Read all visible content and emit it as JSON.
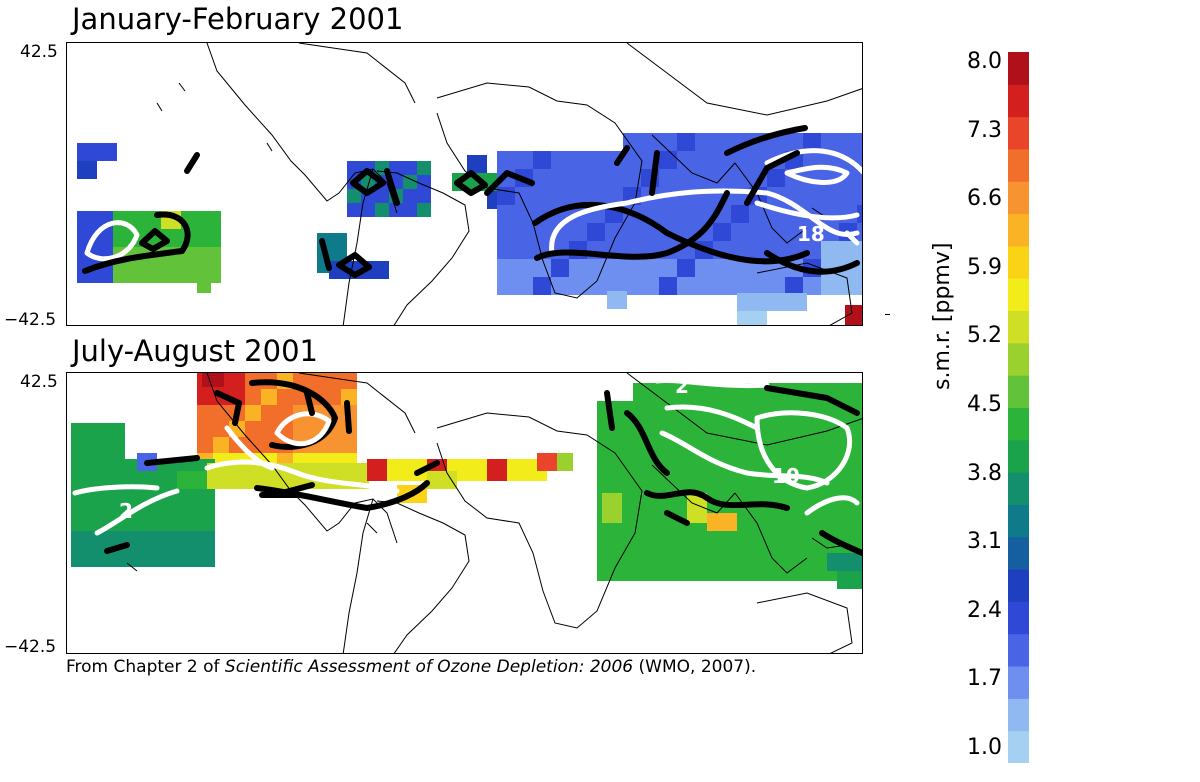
{
  "panels": [
    {
      "title": "January-February 2001",
      "lat_top": "42.5",
      "lat_bottom": "−42.5"
    },
    {
      "title": "July-August 2001",
      "lat_top": "42.5",
      "lat_bottom": "−42.5"
    }
  ],
  "colorbar": {
    "label": "s.m.r.  [ppmv]",
    "ticks": [
      "8.0",
      "7.3",
      "6.6",
      "5.9",
      "5.2",
      "4.5",
      "3.8",
      "3.1",
      "2.4",
      "1.7",
      "1.0"
    ],
    "colors": [
      "#a6d0f2",
      "#8fb9f0",
      "#6e8ff0",
      "#4a64e6",
      "#2f48d6",
      "#1e3fbf",
      "#155fa0",
      "#0f7a8a",
      "#138f6e",
      "#1aa34b",
      "#2cb43a",
      "#62c23a",
      "#9ad12e",
      "#cfdf26",
      "#f2ec1a",
      "#fad317",
      "#f9b324",
      "#f89332",
      "#f26f2b",
      "#e8452a",
      "#d41f1f",
      "#b0101a"
    ]
  },
  "contour_labels": {
    "jan_feb": [
      "18"
    ],
    "jul_aug": [
      "2",
      "2",
      "10"
    ]
  },
  "caption": {
    "prefix": "From Chapter 2 of ",
    "title": "Scientific Assessment of Ozone Depletion: 2006",
    "suffix": " (WMO, 2007)."
  }
}
